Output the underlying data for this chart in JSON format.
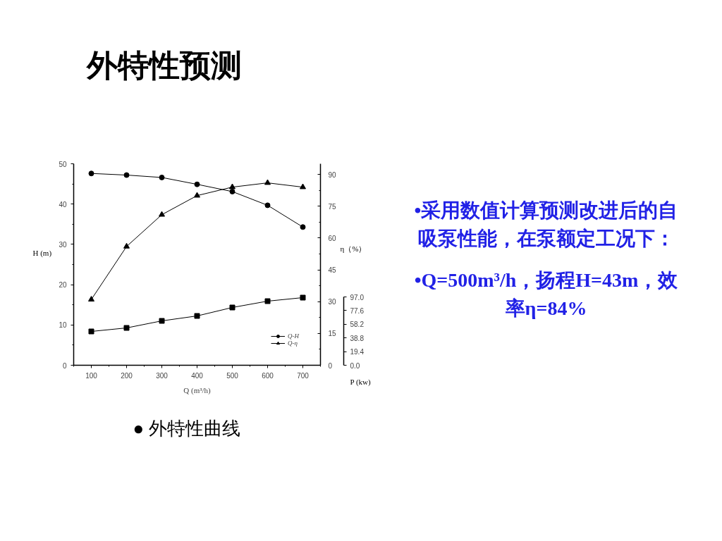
{
  "chart_data": {
    "type": "line",
    "title": "外特性预测",
    "xlabel": "Q (m³/h)",
    "ylabel": "H (m)",
    "y2label": "η（%）",
    "y3label": "P (kw)",
    "x": [
      100,
      200,
      300,
      400,
      500,
      600,
      700
    ],
    "xlim": [
      50,
      750
    ],
    "xticks": [
      {
        "value": 50,
        "label": null
      },
      100,
      {
        "value": 150,
        "label": null
      },
      200,
      {
        "value": 250,
        "label": null
      },
      300,
      {
        "value": 350,
        "label": null
      },
      400,
      {
        "value": 450,
        "label": null
      },
      500,
      {
        "value": 550,
        "label": null
      },
      600,
      {
        "value": 650,
        "label": null
      },
      700,
      {
        "value": 750,
        "label": null
      }
    ],
    "ylim": [
      0,
      50
    ],
    "yticks": [
      0,
      {
        "value": 5,
        "label": null
      },
      10,
      {
        "value": 15,
        "label": null
      },
      20,
      {
        "value": 25,
        "label": null
      },
      30,
      {
        "value": 35,
        "label": null
      },
      40,
      {
        "value": 45,
        "label": null
      },
      50
    ],
    "y2lim": [
      0,
      95
    ],
    "y2ticks": [
      0,
      {
        "value": 7.5,
        "label": null
      },
      15,
      {
        "value": 22.5,
        "label": null
      },
      30,
      {
        "value": 37.5,
        "label": null
      },
      45,
      {
        "value": 52.5,
        "label": null
      },
      60,
      {
        "value": 67.5,
        "label": null
      },
      75,
      {
        "value": 82.5,
        "label": null
      },
      90
    ],
    "y3lim": [
      0,
      97
    ],
    "y3ticks": [
      {
        "value": 0,
        "label": "0.0"
      },
      19.4,
      38.8,
      58.2,
      77.6,
      {
        "value": 97,
        "label": "97.0"
      }
    ],
    "series": [
      {
        "name": "Q-H",
        "color": "#000000",
        "marker": "circle",
        "values": [
          47.6,
          47.2,
          46.6,
          44.9,
          43.1,
          39.7,
          34.3
        ]
      },
      {
        "name": "Q-η",
        "color": "#000000",
        "marker": "triangle",
        "axis": "y2",
        "values": [
          31,
          56,
          71,
          80,
          84,
          86,
          84
        ]
      },
      {
        "color": "#000000",
        "marker": "square",
        "axis": "y3",
        "values": [
          48,
          53,
          63,
          70,
          82,
          91,
          96
        ]
      }
    ],
    "line_style": "solid",
    "legend": "bottom right",
    "annotations": [
      "•采用数值计算预测改进后的自吸泵性能，在泵额定工况下：",
      "•Q=500m³/h，扬程H=43m，效率η=84%",
      "● 外特性曲线"
    ]
  }
}
